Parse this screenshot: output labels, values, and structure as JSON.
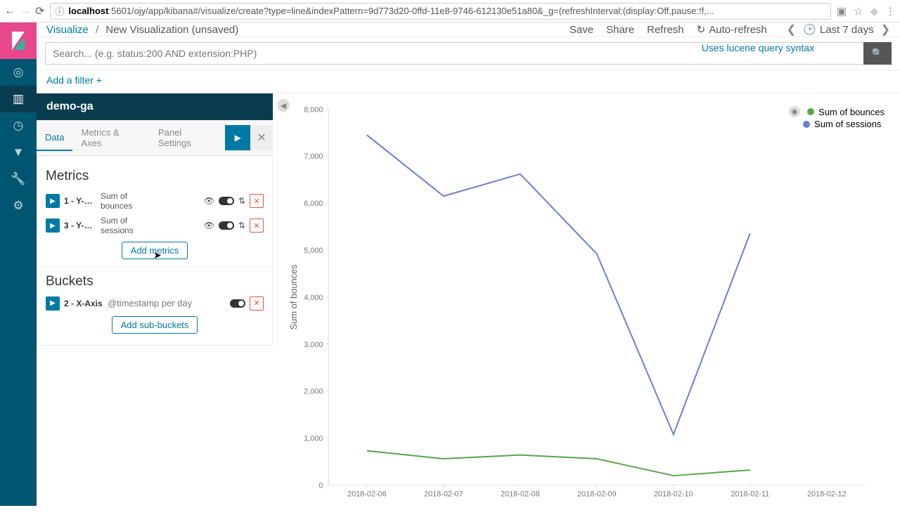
{
  "browser": {
    "host": "localhost",
    "port_path": ":5601/ojy/app/kibana#/visualize/create?type=line&indexPattern=9d773d20-0ffd-11e8-9746-612130e51a80&_g=(refreshInterval:(display:Off,pause:!f,..."
  },
  "breadcrumb": {
    "root": "Visualize",
    "current": "New Visualization (unsaved)"
  },
  "top_actions": {
    "save": "Save",
    "share": "Share",
    "refresh": "Refresh",
    "auto": "Auto-refresh"
  },
  "time": {
    "label": "Last 7 days"
  },
  "search": {
    "placeholder": "Search... (e.g. status:200 AND extension:PHP)",
    "hint": "Uses lucene query syntax"
  },
  "filter": {
    "add": "Add a filter"
  },
  "panel": {
    "title": "demo-ga",
    "tabs": {
      "data": "Data",
      "metrics_axes": "Metrics & Axes",
      "panel_settings": "Panel Settings"
    },
    "metrics_title": "Metrics",
    "metrics": [
      {
        "id": "1 - Y-A...",
        "desc": "Sum of bounces"
      },
      {
        "id": "3 - Y-A...",
        "desc": "Sum of sessions"
      }
    ],
    "add_metrics": "Add metrics",
    "buckets_title": "Buckets",
    "bucket": {
      "id": "2 - X-Axis",
      "desc": "@timestamp per day"
    },
    "add_sub": "Add sub-buckets"
  },
  "chart": {
    "ylabel": "Sum of bounces",
    "ylim": [
      0,
      8000
    ],
    "ytick_step": 1000,
    "x_categories": [
      "2018-02-06",
      "2018-02-07",
      "2018-02-08",
      "2018-02-09",
      "2018-02-10",
      "2018-02-11",
      "2018-02-12"
    ],
    "series": [
      {
        "name": "Sum of bounces",
        "color": "#57a64a",
        "values": [
          730,
          560,
          640,
          560,
          200,
          320
        ]
      },
      {
        "name": "Sum of sessions",
        "color": "#6a7fd1",
        "values": [
          7450,
          6150,
          6620,
          4920,
          1080,
          5360
        ]
      }
    ],
    "background_color": "#ffffff",
    "grid_color": "#dddddd"
  },
  "legend": [
    {
      "label": "Sum of bounces",
      "color": "#57a64a"
    },
    {
      "label": "Sum of sessions",
      "color": "#6a7fd1"
    }
  ]
}
